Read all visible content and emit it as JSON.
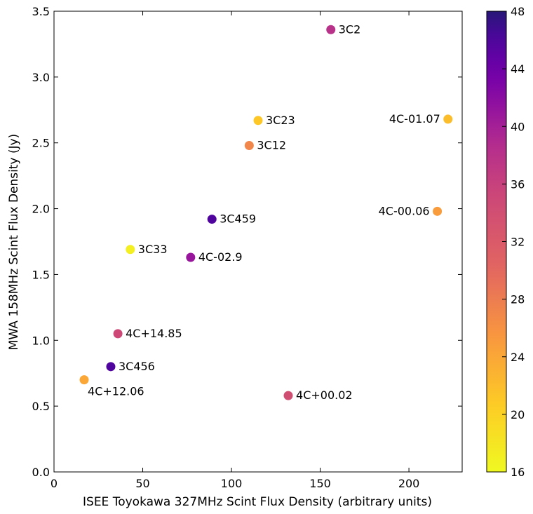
{
  "chart_data": {
    "type": "scatter",
    "title": "",
    "xlabel": "ISEE Toyokawa 327MHz Scint Flux Density (arbitrary units)",
    "ylabel": "MWA 158MHz Scint Flux Density (Jy)",
    "xlim": [
      0,
      230
    ],
    "ylim": [
      0.0,
      3.5
    ],
    "xticks": [
      0,
      50,
      100,
      150,
      200
    ],
    "xtick_labels": [
      "0",
      "50",
      "100",
      "150",
      "200"
    ],
    "yticks": [
      0.0,
      0.5,
      1.0,
      1.5,
      2.0,
      2.5,
      3.0,
      3.5
    ],
    "ytick_labels": [
      "0.0",
      "0.5",
      "1.0",
      "1.5",
      "2.0",
      "2.5",
      "3.0",
      "3.5"
    ],
    "grid": false,
    "colormap": "plasma (reversed)",
    "colorbar": {
      "min": 16,
      "max": 48,
      "ticks": [
        16,
        20,
        24,
        28,
        32,
        36,
        40,
        44,
        48
      ],
      "tick_labels": [
        "16",
        "20",
        "24",
        "28",
        "32",
        "36",
        "40",
        "44",
        "48"
      ],
      "placement": "right"
    },
    "points": [
      {
        "label": "3C2",
        "x": 156,
        "y": 3.36,
        "c": 38,
        "label_side": "right"
      },
      {
        "label": "3C23",
        "x": 115,
        "y": 2.67,
        "c": 21,
        "label_side": "right"
      },
      {
        "label": "4C-01.07",
        "x": 222,
        "y": 2.68,
        "c": 22,
        "label_side": "left"
      },
      {
        "label": "3C12",
        "x": 110,
        "y": 2.48,
        "c": 27,
        "label_side": "right"
      },
      {
        "label": "4C-00.06",
        "x": 216,
        "y": 1.98,
        "c": 25,
        "label_side": "left"
      },
      {
        "label": "3C459",
        "x": 89,
        "y": 1.92,
        "c": 46,
        "label_side": "right"
      },
      {
        "label": "3C33",
        "x": 43,
        "y": 1.69,
        "c": 17,
        "label_side": "right"
      },
      {
        "label": "4C-02.9",
        "x": 77,
        "y": 1.63,
        "c": 41,
        "label_side": "right"
      },
      {
        "label": "4C+14.85",
        "x": 36,
        "y": 1.05,
        "c": 35,
        "label_side": "right"
      },
      {
        "label": "3C456",
        "x": 32,
        "y": 0.8,
        "c": 46,
        "label_side": "right"
      },
      {
        "label": "4C+12.06",
        "x": 17,
        "y": 0.7,
        "c": 24,
        "label_side": "below-right"
      },
      {
        "label": "4C+00.02",
        "x": 132,
        "y": 0.58,
        "c": 34,
        "label_side": "right"
      }
    ]
  }
}
